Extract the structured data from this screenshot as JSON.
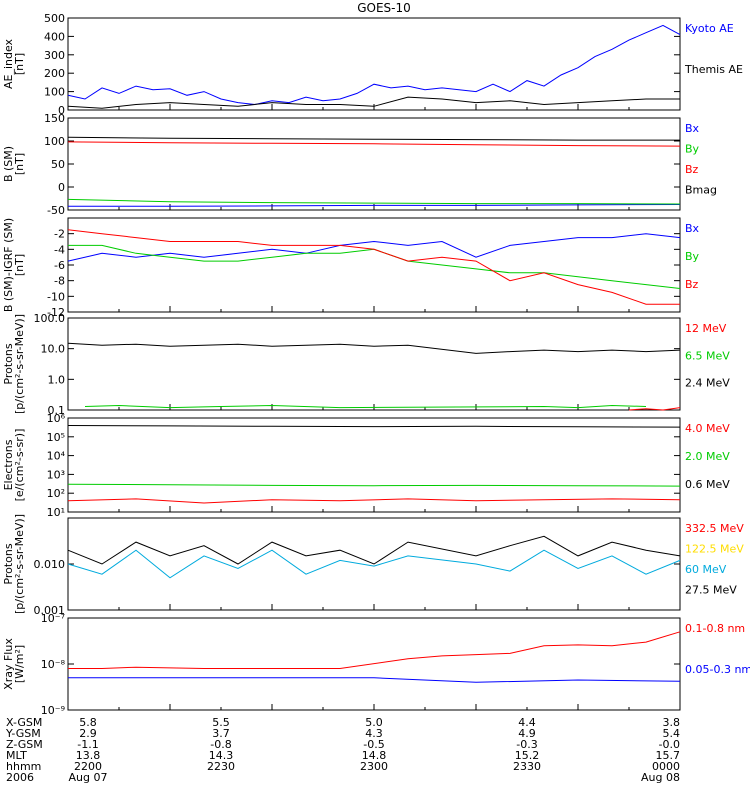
{
  "title": "GOES-10",
  "colors": {
    "black": "#000000",
    "blue": "#0000ff",
    "red": "#ff0000",
    "green": "#00cc00",
    "yellow": "#ffdd00",
    "cyan": "#00aadd"
  },
  "chart_data": [
    {
      "type": "line",
      "ylabel": [
        "AE_index",
        "[nT]"
      ],
      "y_scale": "linear",
      "ylim": [
        0,
        500
      ],
      "yticks": [
        0,
        100,
        200,
        300,
        400,
        500
      ],
      "ytick_labels": [
        "0",
        "100",
        "200",
        "300",
        "400",
        "500"
      ],
      "series": [
        {
          "name": "Kyoto AE",
          "color": "#0000ff",
          "x": [
            0,
            5,
            10,
            15,
            20,
            25,
            30,
            35,
            40,
            45,
            50,
            55,
            60,
            65,
            70,
            75,
            80,
            85,
            90,
            95,
            100,
            105,
            110,
            115,
            120,
            125,
            130,
            135,
            140,
            145,
            150,
            155,
            160,
            165,
            170,
            175,
            180
          ],
          "y": [
            80,
            60,
            120,
            90,
            130,
            110,
            115,
            80,
            100,
            60,
            40,
            30,
            50,
            40,
            70,
            50,
            60,
            90,
            140,
            120,
            130,
            110,
            120,
            110,
            100,
            140,
            100,
            160,
            130,
            190,
            230,
            290,
            330,
            380,
            420,
            460,
            410
          ]
        },
        {
          "name": "Themis AE",
          "color": "#000000",
          "x": [
            0,
            10,
            20,
            30,
            40,
            50,
            60,
            70,
            80,
            90,
            100,
            110,
            120,
            130,
            140,
            150,
            160,
            170,
            180
          ],
          "y": [
            20,
            10,
            30,
            40,
            30,
            20,
            40,
            30,
            30,
            20,
            70,
            60,
            40,
            50,
            30,
            40,
            50,
            60,
            60
          ]
        }
      ]
    },
    {
      "type": "line",
      "ylabel": [
        "B (SM)",
        "[nT]"
      ],
      "y_scale": "linear",
      "ylim": [
        -50,
        150
      ],
      "yticks": [
        -50,
        0,
        50,
        100,
        150
      ],
      "ytick_labels": [
        "-50",
        "0",
        "50",
        "100",
        "150"
      ],
      "series": [
        {
          "name": "Bx",
          "color": "#0000ff",
          "x": [
            0,
            30,
            60,
            90,
            120,
            150,
            180
          ],
          "y": [
            -42,
            -42,
            -41,
            -40,
            -40,
            -39,
            -38
          ]
        },
        {
          "name": "By",
          "color": "#00cc00",
          "x": [
            0,
            30,
            60,
            90,
            120,
            150,
            180
          ],
          "y": [
            -27,
            -32,
            -34,
            -35,
            -36,
            -36,
            -37
          ]
        },
        {
          "name": "Bz",
          "color": "#ff0000",
          "x": [
            0,
            30,
            60,
            90,
            120,
            150,
            180
          ],
          "y": [
            98,
            96,
            95,
            94,
            92,
            90,
            89
          ]
        },
        {
          "name": "Bmag",
          "color": "#000000",
          "x": [
            0,
            30,
            60,
            90,
            120,
            150,
            180
          ],
          "y": [
            108,
            106,
            105,
            104,
            103,
            102,
            102
          ]
        }
      ]
    },
    {
      "type": "line",
      "ylabel": [
        "B (SM)-IGRF (SM)",
        "[nT]"
      ],
      "y_scale": "linear",
      "ylim": [
        -12,
        0
      ],
      "yticks": [
        -12,
        -10,
        -8,
        -6,
        -4,
        -2
      ],
      "ytick_labels": [
        "-12",
        "-10",
        "-8",
        "-6",
        "-4",
        "-2"
      ],
      "series": [
        {
          "name": "Bx",
          "color": "#0000ff",
          "x": [
            0,
            10,
            20,
            30,
            40,
            50,
            60,
            70,
            80,
            90,
            100,
            110,
            120,
            130,
            140,
            150,
            160,
            170,
            180
          ],
          "y": [
            -5.5,
            -4.5,
            -5,
            -4.5,
            -5,
            -4.5,
            -4,
            -4.5,
            -3.5,
            -3,
            -3.5,
            -3,
            -5,
            -3.5,
            -3,
            -2.5,
            -2.5,
            -2,
            -2.5
          ]
        },
        {
          "name": "By",
          "color": "#00cc00",
          "x": [
            0,
            10,
            20,
            30,
            40,
            50,
            60,
            70,
            80,
            90,
            100,
            110,
            120,
            130,
            140,
            150,
            160,
            170,
            180
          ],
          "y": [
            -3.5,
            -3.5,
            -4.5,
            -5,
            -5.5,
            -5.5,
            -5,
            -4.5,
            -4.5,
            -4,
            -5.5,
            -6,
            -6.5,
            -7,
            -7,
            -7.5,
            -8,
            -8.5,
            -9
          ]
        },
        {
          "name": "Bz",
          "color": "#ff0000",
          "x": [
            0,
            10,
            20,
            30,
            40,
            50,
            60,
            70,
            80,
            90,
            100,
            110,
            120,
            130,
            140,
            150,
            160,
            170,
            180
          ],
          "y": [
            -1.5,
            -2,
            -2.5,
            -3,
            -3,
            -3,
            -3.5,
            -3.5,
            -3.5,
            -4,
            -5.5,
            -5,
            -5.5,
            -8,
            -7,
            -8.5,
            -9.5,
            -11,
            -11
          ]
        }
      ]
    },
    {
      "type": "line",
      "ylabel": [
        "Protons",
        "[p/(cm²-s-sr-MeV)]"
      ],
      "y_scale": "log",
      "ylim": [
        0.1,
        100
      ],
      "yticks": [
        0.1,
        1,
        10,
        100
      ],
      "ytick_labels": [
        "0.1",
        "1.0",
        "10.0",
        "100.0"
      ],
      "series": [
        {
          "name": "12 MeV",
          "color": "#ff0000",
          "x": [
            165,
            170,
            175,
            180
          ],
          "y": [
            0.1,
            0.11,
            0.1,
            0.12
          ]
        },
        {
          "name": "6.5 MeV",
          "color": "#00cc00",
          "x": [
            5,
            15,
            30,
            45,
            60,
            80,
            140,
            150,
            160,
            170
          ],
          "y": [
            0.13,
            0.14,
            0.12,
            0.13,
            0.14,
            0.12,
            0.13,
            0.12,
            0.14,
            0.13
          ]
        },
        {
          "name": "2.4 MeV",
          "color": "#000000",
          "x": [
            0,
            10,
            20,
            30,
            40,
            50,
            60,
            70,
            80,
            90,
            100,
            120,
            130,
            140,
            150,
            160,
            170,
            180
          ],
          "y": [
            15,
            13,
            14,
            12,
            13,
            14,
            12,
            13,
            14,
            12,
            13,
            7,
            8,
            9,
            8,
            9,
            8,
            9
          ]
        }
      ]
    },
    {
      "type": "line",
      "ylabel": [
        "Electrons",
        "[e/(cm²-s-sr)]"
      ],
      "y_scale": "log",
      "ylim": [
        10,
        1000000
      ],
      "yticks": [
        10,
        100,
        1000,
        10000,
        100000,
        1000000
      ],
      "ytick_labels": [
        "10¹",
        "10²",
        "10³",
        "10⁴",
        "10⁵",
        "10⁶"
      ],
      "series": [
        {
          "name": "4.0 MeV",
          "color": "#ff0000",
          "x": [
            0,
            20,
            40,
            60,
            80,
            100,
            120,
            140,
            160,
            180
          ],
          "y": [
            40,
            50,
            30,
            45,
            40,
            50,
            40,
            45,
            50,
            45
          ]
        },
        {
          "name": "2.0 MeV",
          "color": "#00cc00",
          "x": [
            0,
            30,
            60,
            90,
            120,
            150,
            180
          ],
          "y": [
            300,
            280,
            260,
            250,
            260,
            250,
            240
          ]
        },
        {
          "name": "0.6 MeV",
          "color": "#000000",
          "x": [
            0,
            30,
            60,
            90,
            120,
            150,
            180
          ],
          "y": [
            400000,
            380000,
            360000,
            350000,
            360000,
            340000,
            330000
          ]
        }
      ]
    },
    {
      "type": "line",
      "ylabel": [
        "Protons",
        "[p/(cm²-s-sr-MeV)]"
      ],
      "y_scale": "log",
      "ylim": [
        0.001,
        0.1
      ],
      "yticks": [
        0.001,
        0.01,
        0.1
      ],
      "ytick_labels": [
        "0.001",
        "0.010",
        ""
      ],
      "series": [
        {
          "name": "332.5 MeV",
          "color": "#ff0000",
          "x": [],
          "y": []
        },
        {
          "name": "122.5 MeV",
          "color": "#ffdd00",
          "x": [],
          "y": []
        },
        {
          "name": "60 MeV",
          "color": "#00aadd",
          "x": [
            0,
            10,
            20,
            30,
            40,
            50,
            60,
            70,
            80,
            90,
            100,
            120,
            130,
            140,
            150,
            160,
            170,
            180
          ],
          "y": [
            0.01,
            0.006,
            0.02,
            0.005,
            0.015,
            0.008,
            0.02,
            0.006,
            0.012,
            0.009,
            0.015,
            0.01,
            0.007,
            0.02,
            0.008,
            0.015,
            0.006,
            0.012
          ]
        },
        {
          "name": "27.5 MeV",
          "color": "#000000",
          "x": [
            0,
            10,
            20,
            30,
            40,
            50,
            60,
            70,
            80,
            90,
            100,
            120,
            130,
            140,
            150,
            160,
            170,
            180
          ],
          "y": [
            0.02,
            0.01,
            0.03,
            0.015,
            0.025,
            0.01,
            0.03,
            0.015,
            0.02,
            0.01,
            0.03,
            0.015,
            0.025,
            0.04,
            0.015,
            0.03,
            0.02,
            0.015
          ]
        }
      ]
    },
    {
      "type": "line",
      "ylabel": [
        "Xray Flux",
        "[W/m²]"
      ],
      "y_scale": "log",
      "ylim": [
        1e-09,
        1e-07
      ],
      "yticks": [
        1e-09,
        1e-08,
        1e-07
      ],
      "ytick_labels": [
        "10⁻⁹",
        "10⁻⁸",
        "10⁻⁷"
      ],
      "series": [
        {
          "name": "0.1-0.8 nm",
          "color": "#ff0000",
          "x": [
            0,
            10,
            20,
            40,
            60,
            80,
            100,
            110,
            120,
            130,
            140,
            150,
            160,
            170,
            180
          ],
          "y": [
            8e-09,
            8e-09,
            8.5e-09,
            8e-09,
            8e-09,
            8e-09,
            1.3e-08,
            1.5e-08,
            1.6e-08,
            1.7e-08,
            2.5e-08,
            2.6e-08,
            2.5e-08,
            3e-08,
            5e-08
          ]
        },
        {
          "name": "0.05-0.3 nm",
          "color": "#0000ff",
          "x": [
            0,
            30,
            60,
            90,
            120,
            150,
            180
          ],
          "y": [
            5e-09,
            5e-09,
            5e-09,
            5e-09,
            4e-09,
            4.5e-09,
            4.2e-09
          ]
        }
      ]
    }
  ],
  "ephemeris": {
    "labels": [
      "X-GSM",
      "Y-GSM",
      "Z-GSM",
      "MLT",
      "hhmm",
      "2006"
    ],
    "columns": [
      [
        "5.8",
        "2.9",
        "-1.1",
        "13.8",
        "2200",
        "Aug 07"
      ],
      [
        "5.5",
        "3.7",
        "-0.8",
        "14.3",
        "2230",
        ""
      ],
      [
        "5.0",
        "4.3",
        "-0.5",
        "14.8",
        "2300",
        ""
      ],
      [
        "4.4",
        "4.9",
        "-0.3",
        "15.2",
        "2330",
        ""
      ],
      [
        "3.8",
        "5.4",
        "-0.0",
        "15.7",
        "0000",
        "Aug 08"
      ]
    ]
  }
}
